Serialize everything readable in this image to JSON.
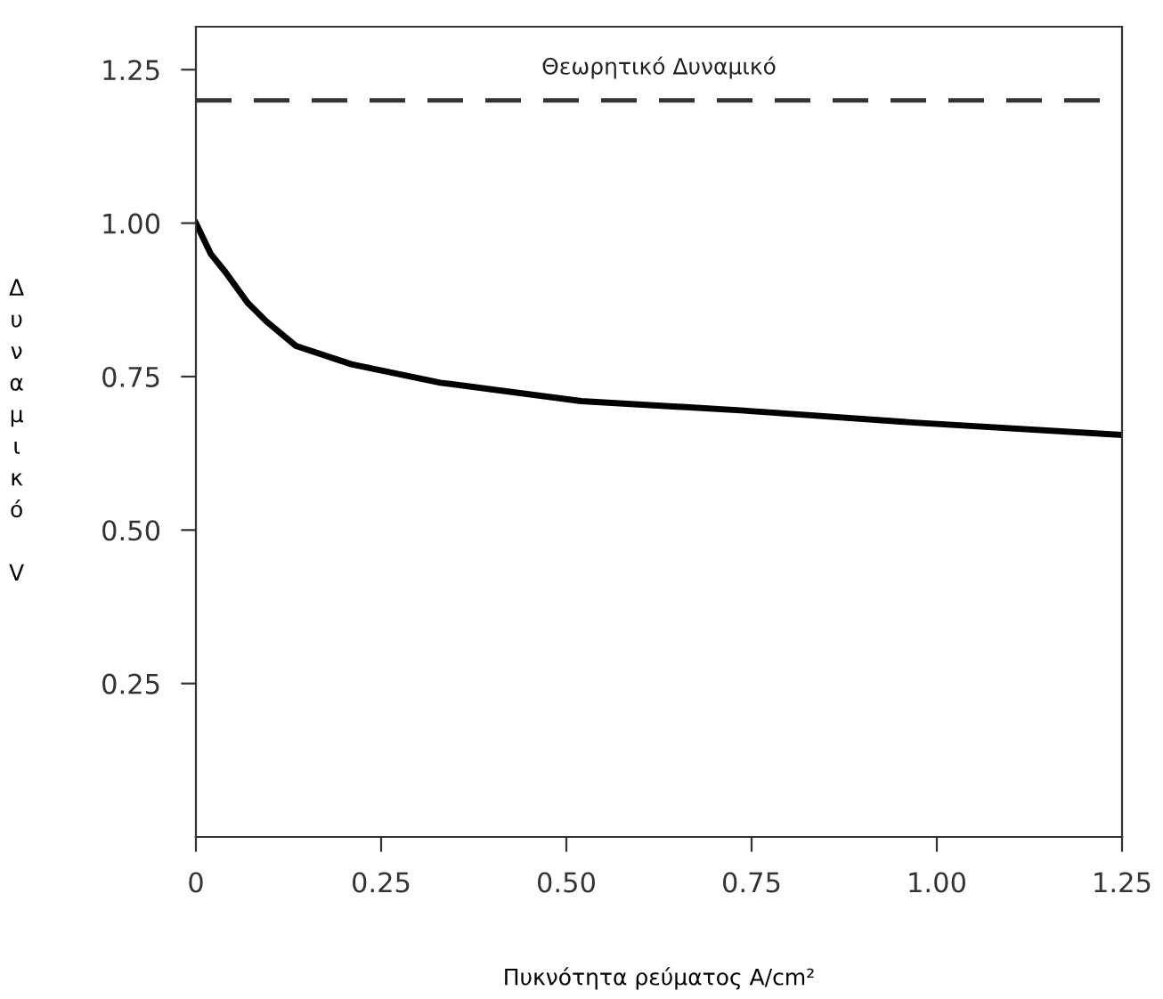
{
  "chart_data": {
    "type": "line",
    "xlabel": "Πυκνότητα ρεύματος A/cm²",
    "ylabel": "Δυναμικό V",
    "x": [
      0,
      0.02,
      0.04,
      0.07,
      0.095,
      0.135,
      0.21,
      0.33,
      0.52,
      0.735,
      0.97,
      1.25
    ],
    "series": [
      {
        "color": "#000000",
        "values": [
          1.0,
          0.95,
          0.92,
          0.87,
          0.84,
          0.8,
          0.77,
          0.74,
          0.71,
          0.695,
          0.675,
          0.655
        ]
      }
    ],
    "ref_lines": [
      {
        "axis": "y",
        "value": 1.2,
        "label": "Θεωρητικό Δυναμικό",
        "color": "#333333",
        "line_style": "dashed"
      }
    ],
    "xlim": [
      0,
      1.25
    ],
    "ylim": [
      0,
      1.32
    ],
    "xticks": [
      0,
      {
        "value": 0.25,
        "label": "0.25"
      },
      {
        "value": 0.5,
        "label": "0.50"
      },
      {
        "value": 0.75,
        "label": "0.75"
      },
      {
        "value": 1.0,
        "label": "1.00"
      },
      {
        "value": 1.25,
        "label": "1.25"
      }
    ],
    "yticks": [
      {
        "value": 0.25,
        "label": "0.25"
      },
      {
        "value": 0.5,
        "label": "0.50"
      },
      {
        "value": 0.75,
        "label": "0.75"
      },
      {
        "value": 1.0,
        "label": "1.00"
      },
      {
        "value": 1.25,
        "label": "1.25"
      }
    ],
    "grid": false,
    "marker": "none",
    "line_style": "solid"
  }
}
